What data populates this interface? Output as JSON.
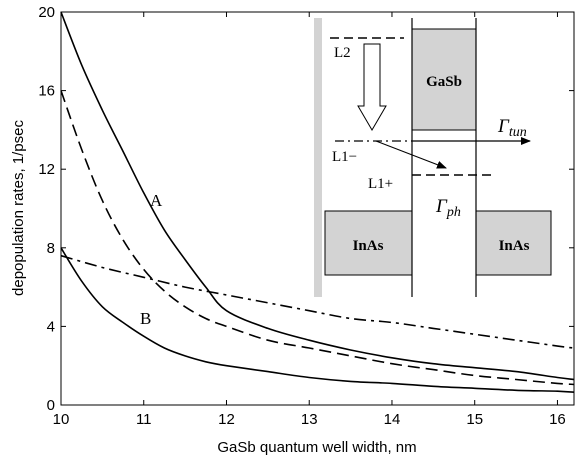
{
  "chart_data": {
    "type": "line",
    "xlabel": "GaSb quantum well width, nm",
    "ylabel": "depopulation rates, 1/psec",
    "xlim": [
      10,
      16.2
    ],
    "ylim": [
      0,
      20
    ],
    "xticks": [
      "10",
      "11",
      "12",
      "13",
      "14",
      "15",
      "16"
    ],
    "yticks": [
      "0",
      "4",
      "8",
      "12",
      "16",
      "20"
    ],
    "series": [
      {
        "name": "A",
        "style": "solid",
        "x": [
          10,
          10.25,
          10.5,
          10.75,
          11,
          11.25,
          11.5,
          11.75,
          12,
          12.5,
          13,
          13.5,
          14,
          14.5,
          15,
          15.5,
          16,
          16.2
        ],
        "values": [
          20,
          17.3,
          15.0,
          12.9,
          10.8,
          8.9,
          7.4,
          6.0,
          4.8,
          3.9,
          3.3,
          2.8,
          2.4,
          2.1,
          1.9,
          1.7,
          1.4,
          1.3
        ]
      },
      {
        "name": "B",
        "style": "solid",
        "x": [
          10,
          10.25,
          10.5,
          10.75,
          11,
          11.25,
          11.5,
          11.75,
          12,
          12.5,
          13,
          13.5,
          14,
          14.5,
          15,
          15.5,
          16,
          16.2
        ],
        "values": [
          8.0,
          6.3,
          5.0,
          4.2,
          3.5,
          2.9,
          2.5,
          2.2,
          2.0,
          1.7,
          1.4,
          1.2,
          1.1,
          0.95,
          0.85,
          0.75,
          0.7,
          0.65
        ]
      },
      {
        "style": "dashed",
        "x": [
          10,
          10.25,
          10.5,
          10.75,
          11,
          11.25,
          11.5,
          11.75,
          12,
          12.5,
          13,
          13.5,
          14,
          14.5,
          15,
          15.5,
          16,
          16.2
        ],
        "values": [
          16,
          13.0,
          10.4,
          8.4,
          6.9,
          5.8,
          5.0,
          4.4,
          4.0,
          3.3,
          2.9,
          2.5,
          2.1,
          1.8,
          1.5,
          1.3,
          1.1,
          1.05
        ]
      },
      {
        "style": "dashdot",
        "x": [
          10,
          10.5,
          11,
          11.5,
          12,
          12.5,
          13,
          13.5,
          14,
          14.5,
          15,
          15.5,
          16,
          16.2
        ],
        "values": [
          7.6,
          7.0,
          6.5,
          6.0,
          5.6,
          5.2,
          4.8,
          4.4,
          4.2,
          3.9,
          3.6,
          3.3,
          3.0,
          2.9
        ]
      }
    ],
    "curve_labels": [
      "A",
      "B"
    ]
  },
  "inset": {
    "layer_gasb": "GaSb",
    "layer_inas_left": "InAs",
    "layer_inas_right": "InAs",
    "level_l2": "L2",
    "level_l1_minus": "L1−",
    "level_l1_plus": "L1+",
    "gamma_symbol": "Γ",
    "gamma_tun_sub": "tun",
    "gamma_ph_sub": "ph"
  }
}
